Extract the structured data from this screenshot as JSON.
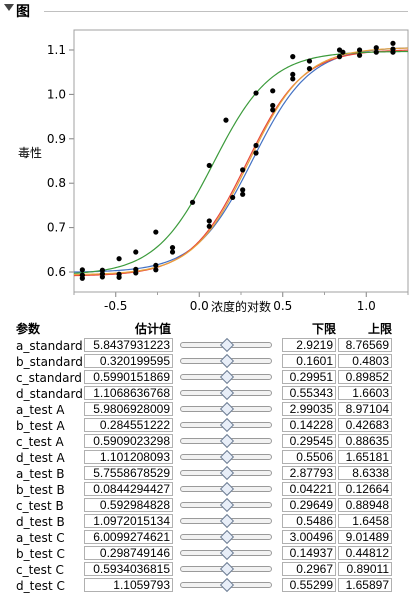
{
  "header": {
    "title": "图"
  },
  "chart_data": {
    "type": "scatter",
    "xlabel": "浓度的对数",
    "ylabel": "毒性",
    "xlim": [
      -0.75,
      1.25
    ],
    "ylim": [
      0.555,
      1.145
    ],
    "xticks": [
      -0.5,
      0.0,
      0.5,
      1.0
    ],
    "xtick_labels": [
      "-0.5",
      "0.0",
      "0.5",
      "1.0"
    ],
    "yticks": [
      0.6,
      0.7,
      0.8,
      0.9,
      1.0,
      1.1
    ],
    "ytick_labels": [
      "0.6",
      "0.7",
      "0.8",
      "0.9",
      "1.0",
      "1.1"
    ],
    "grid": false,
    "points": [
      {
        "x": -0.7,
        "y": 0.605
      },
      {
        "x": -0.7,
        "y": 0.593
      },
      {
        "x": -0.7,
        "y": 0.586
      },
      {
        "x": -0.58,
        "y": 0.604
      },
      {
        "x": -0.58,
        "y": 0.596
      },
      {
        "x": -0.58,
        "y": 0.589
      },
      {
        "x": -0.48,
        "y": 0.63
      },
      {
        "x": -0.48,
        "y": 0.595
      },
      {
        "x": -0.48,
        "y": 0.588
      },
      {
        "x": -0.38,
        "y": 0.645
      },
      {
        "x": -0.38,
        "y": 0.606
      },
      {
        "x": -0.38,
        "y": 0.598
      },
      {
        "x": -0.26,
        "y": 0.69
      },
      {
        "x": -0.26,
        "y": 0.615
      },
      {
        "x": -0.26,
        "y": 0.605
      },
      {
        "x": -0.16,
        "y": 0.655
      },
      {
        "x": -0.16,
        "y": 0.645
      },
      {
        "x": -0.04,
        "y": 0.757
      },
      {
        "x": 0.06,
        "y": 0.84
      },
      {
        "x": 0.06,
        "y": 0.715
      },
      {
        "x": 0.06,
        "y": 0.703
      },
      {
        "x": 0.16,
        "y": 0.942
      },
      {
        "x": 0.2,
        "y": 0.768
      },
      {
        "x": 0.26,
        "y": 0.83
      },
      {
        "x": 0.26,
        "y": 0.785
      },
      {
        "x": 0.26,
        "y": 0.775
      },
      {
        "x": 0.34,
        "y": 1.003
      },
      {
        "x": 0.34,
        "y": 0.885
      },
      {
        "x": 0.34,
        "y": 0.868
      },
      {
        "x": 0.44,
        "y": 1.008
      },
      {
        "x": 0.44,
        "y": 0.975
      },
      {
        "x": 0.44,
        "y": 0.965
      },
      {
        "x": 0.56,
        "y": 1.085
      },
      {
        "x": 0.56,
        "y": 1.045
      },
      {
        "x": 0.56,
        "y": 1.035
      },
      {
        "x": 0.66,
        "y": 1.075
      },
      {
        "x": 0.66,
        "y": 1.058
      },
      {
        "x": 0.84,
        "y": 1.1
      },
      {
        "x": 0.84,
        "y": 1.085
      },
      {
        "x": 0.86,
        "y": 1.095
      },
      {
        "x": 0.96,
        "y": 1.1
      },
      {
        "x": 0.96,
        "y": 1.088
      },
      {
        "x": 1.06,
        "y": 1.105
      },
      {
        "x": 1.06,
        "y": 1.095
      },
      {
        "x": 1.16,
        "y": 1.115
      },
      {
        "x": 1.16,
        "y": 1.102
      },
      {
        "x": 1.16,
        "y": 1.095
      }
    ],
    "curves": [
      {
        "color": "#4472c4",
        "a": 5.8437931223,
        "b": 0.320199595,
        "c": 0.5990151869,
        "d": 1.1068636768
      },
      {
        "color": "#e8483c",
        "a": 5.9806928009,
        "b": 0.284551222,
        "c": 0.5909023298,
        "d": 1.101208093
      },
      {
        "color": "#3c9b3c",
        "a": 5.7558678529,
        "b": 0.0844294427,
        "c": 0.592984828,
        "d": 1.0972015134
      },
      {
        "color": "#e8a23c",
        "a": 6.0099274621,
        "b": 0.298749146,
        "c": 0.5934036815,
        "d": 1.1059793
      }
    ],
    "colors": {
      "points": "#000000"
    }
  },
  "params": {
    "headers": {
      "name": "参数",
      "estimate": "估计值",
      "lower": "下限",
      "upper": "上限"
    },
    "rows": [
      {
        "name": "a_standard",
        "estimate": "5.8437931223",
        "lower": "2.9219",
        "upper": "8.76569"
      },
      {
        "name": "b_standard",
        "estimate": "0.320199595",
        "lower": "0.1601",
        "upper": "0.4803"
      },
      {
        "name": "c_standard",
        "estimate": "0.5990151869",
        "lower": "0.29951",
        "upper": "0.89852"
      },
      {
        "name": "d_standard",
        "estimate": "1.1068636768",
        "lower": "0.55343",
        "upper": "1.6603"
      },
      {
        "name": "a_test A",
        "estimate": "5.9806928009",
        "lower": "2.99035",
        "upper": "8.97104"
      },
      {
        "name": "b_test A",
        "estimate": "0.284551222",
        "lower": "0.14228",
        "upper": "0.42683"
      },
      {
        "name": "c_test A",
        "estimate": "0.5909023298",
        "lower": "0.29545",
        "upper": "0.88635"
      },
      {
        "name": "d_test A",
        "estimate": "1.101208093",
        "lower": "0.5506",
        "upper": "1.65181"
      },
      {
        "name": "a_test B",
        "estimate": "5.7558678529",
        "lower": "2.87793",
        "upper": "8.6338"
      },
      {
        "name": "b_test B",
        "estimate": "0.0844294427",
        "lower": "0.04221",
        "upper": "0.12664"
      },
      {
        "name": "c_test B",
        "estimate": "0.592984828",
        "lower": "0.29649",
        "upper": "0.88948"
      },
      {
        "name": "d_test B",
        "estimate": "1.0972015134",
        "lower": "0.5486",
        "upper": "1.6458"
      },
      {
        "name": "a_test C",
        "estimate": "6.0099274621",
        "lower": "3.00496",
        "upper": "9.01489"
      },
      {
        "name": "b_test C",
        "estimate": "0.298749146",
        "lower": "0.14937",
        "upper": "0.44812"
      },
      {
        "name": "c_test C",
        "estimate": "0.5934036815",
        "lower": "0.2967",
        "upper": "0.89011"
      },
      {
        "name": "d_test C",
        "estimate": "1.1059793",
        "lower": "0.55299",
        "upper": "1.65897"
      }
    ]
  }
}
